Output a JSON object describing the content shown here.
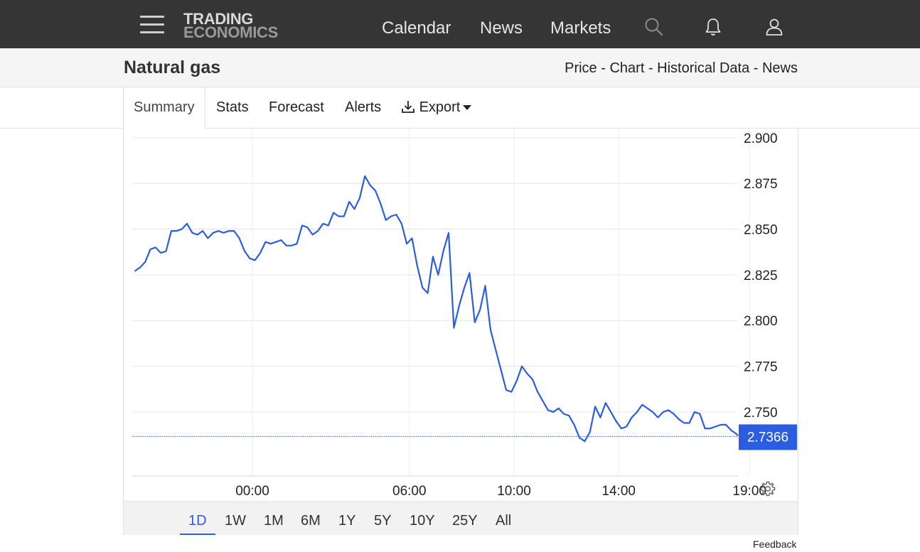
{
  "nav": {
    "logo_line1": "TRADING",
    "logo_line2": "ECONOMICS",
    "links": [
      "Calendar",
      "News",
      "Markets"
    ],
    "icons": [
      "hamburger-icon",
      "search-icon",
      "bell-icon",
      "user-icon"
    ]
  },
  "header": {
    "title": "Natural gas",
    "crumbs": [
      "Price",
      "Chart",
      "Historical Data",
      "News"
    ],
    "separator": " - "
  },
  "tabs": {
    "items": [
      "Summary",
      "Stats",
      "Forecast",
      "Alerts"
    ],
    "export_label": "Export",
    "active": "Summary"
  },
  "chart_data": {
    "type": "line",
    "x_tick_labels": [
      "00:00",
      "06:00",
      "10:00",
      "14:00",
      "19:00"
    ],
    "y_tick_labels": [
      "2.900",
      "2.875",
      "2.850",
      "2.825",
      "2.800",
      "2.775",
      "2.750"
    ],
    "ylim": [
      2.715,
      2.905
    ],
    "grid": true,
    "last_value": 2.7366,
    "last_value_label": "2.7366",
    "line_color": "#2b5de0",
    "series": [
      {
        "x": [
          -4.5,
          -4.3,
          -4.1,
          -3.9,
          -3.7,
          -3.5,
          -3.3,
          -3.1,
          -2.9,
          -2.7,
          -2.5,
          -2.3,
          -2.1,
          -1.9,
          -1.7,
          -1.5,
          -1.3,
          -1.1,
          -0.9,
          -0.7,
          -0.5,
          -0.3,
          -0.1,
          0.1,
          0.3,
          0.5,
          0.7,
          0.9,
          1.1,
          1.3,
          1.5,
          1.7,
          1.9,
          2.1,
          2.3,
          2.5,
          2.7,
          2.9,
          3.1,
          3.3,
          3.5,
          3.7,
          3.9,
          4.1,
          4.3,
          4.5,
          4.7,
          4.9,
          5.1,
          5.3,
          5.5,
          5.7,
          5.9,
          6.1,
          6.3,
          6.5,
          6.7,
          6.9,
          7.1,
          7.3,
          7.5,
          7.7,
          7.9,
          8.1,
          8.3,
          8.5,
          8.7,
          8.9,
          9.1,
          9.3,
          9.5,
          9.7,
          9.9,
          10.1,
          10.3,
          10.5,
          10.7,
          10.9,
          11.1,
          11.3,
          11.5,
          11.7,
          11.9,
          12.1,
          12.3,
          12.5,
          12.7,
          12.9,
          13.1,
          13.3,
          13.5,
          13.7,
          13.9,
          14.1,
          14.3,
          14.5,
          14.7,
          14.9,
          15.1,
          15.3,
          15.5,
          15.7,
          15.9,
          16.1,
          16.3,
          16.5,
          16.7,
          16.9,
          17.1,
          17.3,
          17.5,
          17.7,
          17.9,
          18.1,
          18.3,
          18.5,
          18.7,
          18.9,
          19.1,
          19.3
        ],
        "y": [
          2.827,
          2.829,
          2.832,
          2.839,
          2.84,
          2.837,
          2.838,
          2.849,
          2.849,
          2.85,
          2.853,
          2.848,
          2.847,
          2.849,
          2.845,
          2.848,
          2.849,
          2.848,
          2.849,
          2.849,
          2.845,
          2.838,
          2.834,
          2.833,
          2.837,
          2.843,
          2.842,
          2.843,
          2.844,
          2.841,
          2.841,
          2.842,
          2.852,
          2.851,
          2.847,
          2.849,
          2.853,
          2.852,
          2.859,
          2.857,
          2.857,
          2.865,
          2.861,
          2.867,
          2.879,
          2.874,
          2.871,
          2.864,
          2.855,
          2.857,
          2.858,
          2.853,
          2.842,
          2.845,
          2.83,
          2.818,
          2.815,
          2.835,
          2.825,
          2.838,
          2.848,
          2.796,
          2.808,
          2.818,
          2.826,
          2.799,
          2.806,
          2.819,
          2.795,
          2.784,
          2.773,
          2.762,
          2.761,
          2.767,
          2.775,
          2.771,
          2.768,
          2.761,
          2.756,
          2.751,
          2.75,
          2.752,
          2.749,
          2.748,
          2.743,
          2.736,
          2.734,
          2.739,
          2.753,
          2.747,
          2.755,
          2.75,
          2.745,
          2.741,
          2.742,
          2.747,
          2.75,
          2.754,
          2.752,
          2.75,
          2.747,
          2.75,
          2.751,
          2.749,
          2.746,
          2.744,
          2.744,
          2.75,
          2.749,
          2.741,
          2.741,
          2.742,
          2.743,
          2.743,
          2.74,
          2.738,
          2.737,
          2.737,
          2.737,
          2.737
        ]
      }
    ]
  },
  "ranges": {
    "items": [
      "1D",
      "1W",
      "1M",
      "6M",
      "1Y",
      "5Y",
      "10Y",
      "25Y",
      "All"
    ],
    "active": "1D"
  },
  "feedback_label": "Feedback"
}
